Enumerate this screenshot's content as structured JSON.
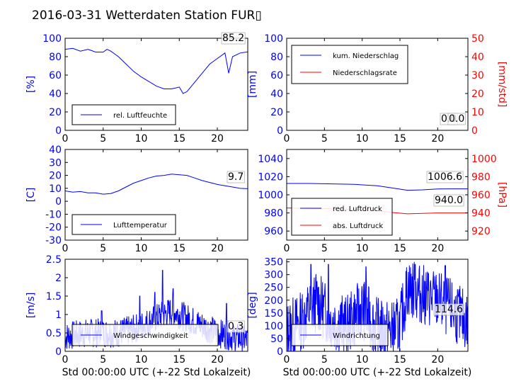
{
  "title": "2016-03-31 Wetterdaten Station FUR▯",
  "colors": {
    "primary": "#0000ff",
    "secondary": "#ff0000",
    "frame": "#000000"
  },
  "chart_data": [
    {
      "id": "humidity",
      "type": "line",
      "ylabel": "[%]",
      "xlim": [
        0,
        24
      ],
      "ylim": [
        0,
        100
      ],
      "yticks": [
        0,
        20,
        40,
        60,
        80,
        100
      ],
      "xticks": [
        0,
        5,
        10,
        15,
        20
      ],
      "value_label": "85.2",
      "legend": [
        {
          "label": "rel. Luftfeuchte",
          "color": "#0000ff"
        }
      ],
      "series": [
        {
          "name": "rel. Luftfeuchte",
          "color": "#0000ff",
          "points": [
            [
              0,
              88
            ],
            [
              1,
              89
            ],
            [
              2,
              86
            ],
            [
              3,
              88
            ],
            [
              4,
              85
            ],
            [
              5,
              85
            ],
            [
              5.5,
              88
            ],
            [
              6,
              86
            ],
            [
              7,
              80
            ],
            [
              8,
              72
            ],
            [
              9,
              64
            ],
            [
              10,
              58
            ],
            [
              11,
              53
            ],
            [
              12,
              48
            ],
            [
              13,
              45
            ],
            [
              14,
              45
            ],
            [
              15,
              47
            ],
            [
              15.5,
              40
            ],
            [
              16,
              42
            ],
            [
              17,
              52
            ],
            [
              18,
              62
            ],
            [
              19,
              72
            ],
            [
              20,
              78
            ],
            [
              21,
              84
            ],
            [
              21.5,
              62
            ],
            [
              22,
              80
            ],
            [
              23,
              84
            ],
            [
              24,
              85.2
            ]
          ]
        }
      ]
    },
    {
      "id": "precipitation",
      "type": "line",
      "ylabel": "[mm]",
      "ylabel_right": "[mm/std]",
      "xlim": [
        0,
        24
      ],
      "ylim": [
        0,
        100
      ],
      "ylim_right": [
        0,
        50
      ],
      "yticks": [
        0,
        20,
        40,
        60,
        80,
        100
      ],
      "yticks_right": [
        0,
        10,
        20,
        30,
        40,
        50
      ],
      "xticks": [
        0,
        5,
        10,
        15,
        20
      ],
      "value_label": "0.0",
      "value_label_2": "0.0",
      "legend": [
        {
          "label": "kum. Niederschlag",
          "color": "#0000ff"
        },
        {
          "label": "Niederschlagsrate",
          "color": "#ff0000"
        }
      ],
      "series": [
        {
          "name": "kum. Niederschlag",
          "color": "#0000ff",
          "axis": "left",
          "points": [
            [
              0,
              0
            ],
            [
              24,
              0
            ]
          ]
        },
        {
          "name": "Niederschlagsrate",
          "color": "#ff0000",
          "axis": "right",
          "points": [
            [
              0,
              0
            ],
            [
              24,
              0
            ]
          ]
        }
      ]
    },
    {
      "id": "temperature",
      "type": "line",
      "ylabel": "[C]",
      "xlim": [
        0,
        24
      ],
      "ylim": [
        -30,
        40
      ],
      "yticks": [
        -30,
        -20,
        -10,
        0,
        10,
        20,
        30,
        40
      ],
      "xticks": [
        0,
        5,
        10,
        15,
        20
      ],
      "value_label": "9.7",
      "legend": [
        {
          "label": "Lufttemperatur",
          "color": "#0000ff"
        }
      ],
      "series": [
        {
          "name": "Lufttemperatur",
          "color": "#0000ff",
          "points": [
            [
              0,
              8
            ],
            [
              1,
              7
            ],
            [
              2,
              7.5
            ],
            [
              3,
              6.5
            ],
            [
              4,
              6.5
            ],
            [
              5,
              5.5
            ],
            [
              6,
              6
            ],
            [
              7,
              8
            ],
            [
              8,
              11
            ],
            [
              9,
              14
            ],
            [
              10,
              16
            ],
            [
              11,
              18
            ],
            [
              12,
              19.5
            ],
            [
              13,
              20
            ],
            [
              14,
              21
            ],
            [
              15,
              20.5
            ],
            [
              16,
              20
            ],
            [
              17,
              18
            ],
            [
              18,
              16
            ],
            [
              19,
              14.5
            ],
            [
              20,
              13
            ],
            [
              21,
              12
            ],
            [
              22,
              11
            ],
            [
              23,
              10
            ],
            [
              24,
              9.7
            ]
          ]
        }
      ]
    },
    {
      "id": "pressure",
      "type": "line",
      "ylabel_right": "[hPa]",
      "xlim": [
        0,
        24
      ],
      "ylim": [
        950,
        1050
      ],
      "ylim_right": [
        910,
        1010
      ],
      "yticks": [
        960,
        980,
        1000,
        1020,
        1040
      ],
      "yticks_right": [
        920,
        940,
        960,
        980,
        1000
      ],
      "xticks": [
        0,
        5,
        10,
        15,
        20
      ],
      "value_label": "1006.6",
      "value_label_2": "940.0",
      "legend": [
        {
          "label": "red. Luftdruck",
          "color": "#0000ff"
        },
        {
          "label": "abs. Luftdruck",
          "color": "#ff0000"
        }
      ],
      "series": [
        {
          "name": "red. Luftdruck",
          "color": "#0000ff",
          "axis": "left",
          "points": [
            [
              0,
              1012.5
            ],
            [
              3,
              1012.5
            ],
            [
              6,
              1012
            ],
            [
              9,
              1011.5
            ],
            [
              12,
              1010
            ],
            [
              14,
              1007.5
            ],
            [
              16,
              1005
            ],
            [
              18,
              1005.5
            ],
            [
              20,
              1006.5
            ],
            [
              22,
              1006.6
            ],
            [
              24,
              1006.6
            ]
          ]
        },
        {
          "name": "abs. Luftdruck",
          "color": "#ff0000",
          "axis": "right",
          "points": [
            [
              0,
              945.5
            ],
            [
              3,
              945
            ],
            [
              6,
              944.5
            ],
            [
              9,
              944
            ],
            [
              12,
              942.5
            ],
            [
              14,
              940.5
            ],
            [
              16,
              939
            ],
            [
              18,
              939.5
            ],
            [
              20,
              940
            ],
            [
              22,
              940
            ],
            [
              24,
              940
            ]
          ]
        }
      ]
    },
    {
      "id": "wind-speed",
      "type": "line",
      "ylabel": "[m/s]",
      "xlabel": "Std 00:00:00 UTC (+-22 Std Lokalzeit)",
      "xlim": [
        0,
        24
      ],
      "ylim": [
        0,
        2.5
      ],
      "yticks": [
        0.0,
        0.5,
        1.0,
        1.5,
        2.0,
        2.5
      ],
      "xticks": [
        0,
        5,
        10,
        15,
        20
      ],
      "value_label": "0.3",
      "legend": [
        {
          "label": "Windgeschwindigkeit",
          "color": "#0000ff"
        }
      ],
      "series": [
        {
          "name": "Windgeschwindigkeit",
          "color": "#0000ff",
          "noisy": true,
          "seed": 7,
          "baseline": [
            [
              0,
              0.4
            ],
            [
              3,
              0.5
            ],
            [
              5,
              0.5
            ],
            [
              7,
              0.5
            ],
            [
              9,
              0.6
            ],
            [
              11,
              0.8
            ],
            [
              13,
              1.0
            ],
            [
              14,
              1.1
            ],
            [
              16,
              0.9
            ],
            [
              18,
              0.7
            ],
            [
              20,
              0.5
            ],
            [
              22,
              0.4
            ],
            [
              24,
              0.3
            ]
          ],
          "amplitude": 0.4,
          "spikes": [
            [
              4.8,
              1.1
            ],
            [
              9.8,
              1.5
            ],
            [
              11.8,
              1.6
            ],
            [
              12.8,
              2.2
            ],
            [
              14.2,
              1.7
            ],
            [
              21.2,
              1.3
            ]
          ]
        }
      ]
    },
    {
      "id": "wind-direction",
      "type": "line",
      "ylabel": "[deg]",
      "xlabel": "Std 00:00:00 UTC (+-22 Std Lokalzeit)",
      "xlim": [
        0,
        24
      ],
      "ylim": [
        0,
        360
      ],
      "yticks": [
        0,
        50,
        100,
        150,
        200,
        250,
        300,
        350
      ],
      "xticks": [
        0,
        5,
        10,
        15,
        20
      ],
      "value_label": "114.6",
      "legend": [
        {
          "label": "Windrichtung",
          "color": "#0000ff"
        }
      ],
      "series": [
        {
          "name": "Windrichtung",
          "color": "#0000ff",
          "noisy": true,
          "seed": 13,
          "baseline": [
            [
              0,
              80
            ],
            [
              2,
              120
            ],
            [
              4,
              200
            ],
            [
              5,
              160
            ],
            [
              6,
              120
            ],
            [
              8,
              100
            ],
            [
              10,
              170
            ],
            [
              12,
              90
            ],
            [
              14,
              80
            ],
            [
              15,
              100
            ],
            [
              16,
              250
            ],
            [
              18,
              220
            ],
            [
              20,
              200
            ],
            [
              22,
              160
            ],
            [
              24,
              114.6
            ]
          ],
          "amplitude": 120,
          "spikes": [
            [
              3.2,
              340
            ],
            [
              5.5,
              340
            ],
            [
              10.5,
              330
            ],
            [
              17,
              340
            ],
            [
              21,
              335
            ]
          ]
        }
      ]
    }
  ]
}
